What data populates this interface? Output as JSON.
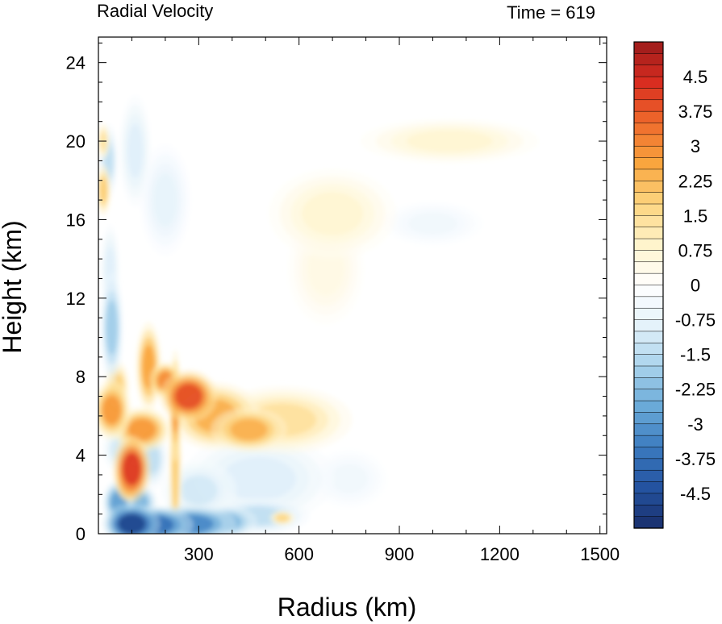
{
  "chart_data": {
    "type": "heatmap",
    "title": "Radial Velocity",
    "subtitle": "Time = 619",
    "xlabel": "Radius (km)",
    "ylabel": "Height (km)",
    "xlim": [
      0,
      1520
    ],
    "ylim": [
      0,
      25.3
    ],
    "x_ticks": [
      300,
      600,
      900,
      1200,
      1500
    ],
    "x_tick_labels": [
      "300",
      "600",
      "900",
      "1200",
      "1500"
    ],
    "y_ticks": [
      0,
      4,
      8,
      12,
      16,
      20,
      24
    ],
    "y_tick_labels": [
      "0",
      "4",
      "8",
      "12",
      "16",
      "20",
      "24"
    ],
    "grid": false,
    "colorbar": {
      "min": -5.25,
      "max": 5.25,
      "step": 0.25,
      "labels": [
        "4.5",
        "3.75",
        "3",
        "2.25",
        "1.5",
        "0.75",
        "0",
        "-0.75",
        "-1.5",
        "-2.25",
        "-3",
        "-3.75",
        "-4.5"
      ],
      "label_values": [
        4.5,
        3.75,
        3,
        2.25,
        1.5,
        0.75,
        0,
        -0.75,
        -1.5,
        -2.25,
        -3,
        -3.75,
        -4.5
      ],
      "palette": [
        "#1a2f6b",
        "#2453a0",
        "#3b7bc0",
        "#6aaad8",
        "#a9d3ec",
        "#e4f2fa",
        "#ffffff",
        "#fff4cc",
        "#fdd57f",
        "#f9a53e",
        "#ef6b2c",
        "#d92d20",
        "#9b1b1b"
      ]
    },
    "features": [
      {
        "r": 100,
        "z": 3.3,
        "dr": 30,
        "dz": 0.9,
        "v": 4.5
      },
      {
        "r": 90,
        "z": 2.6,
        "dr": 20,
        "dz": 0.5,
        "v": 3.5
      },
      {
        "r": 270,
        "z": 7.0,
        "dr": 45,
        "dz": 0.7,
        "v": 4.2
      },
      {
        "r": 200,
        "z": 7.8,
        "dr": 25,
        "dz": 0.5,
        "v": 3.2
      },
      {
        "r": 150,
        "z": 8.5,
        "dr": 20,
        "dz": 1.2,
        "v": 2.8
      },
      {
        "r": 350,
        "z": 6.0,
        "dr": 70,
        "dz": 0.9,
        "v": 2.6
      },
      {
        "r": 450,
        "z": 5.3,
        "dr": 60,
        "dz": 0.6,
        "v": 2.6
      },
      {
        "r": 550,
        "z": 5.8,
        "dr": 110,
        "dz": 0.9,
        "v": 1.5
      },
      {
        "r": 130,
        "z": 5.3,
        "dr": 45,
        "dz": 0.6,
        "v": 3.0
      },
      {
        "r": 40,
        "z": 6.3,
        "dr": 30,
        "dz": 0.8,
        "v": 3.0
      },
      {
        "r": 55,
        "z": 7.5,
        "dr": 20,
        "dz": 0.7,
        "v": 2.0
      },
      {
        "r": 230,
        "z": 3.5,
        "dr": 10,
        "dz": 2.5,
        "v": 2.0
      },
      {
        "r": 230,
        "z": 6.5,
        "dr": 10,
        "dz": 1.5,
        "v": 3.0
      },
      {
        "r": 100,
        "z": 0.5,
        "dr": 45,
        "dz": 0.55,
        "v": -5.0
      },
      {
        "r": 170,
        "z": 0.45,
        "dr": 60,
        "dz": 0.5,
        "v": -4.0
      },
      {
        "r": 280,
        "z": 0.5,
        "dr": 70,
        "dz": 0.5,
        "v": -3.5
      },
      {
        "r": 380,
        "z": 0.6,
        "dr": 50,
        "dz": 0.45,
        "v": -2.5
      },
      {
        "r": 60,
        "z": 1.6,
        "dr": 25,
        "dz": 0.6,
        "v": -3.0
      },
      {
        "r": 120,
        "z": 1.6,
        "dr": 30,
        "dz": 0.5,
        "v": -2.5
      },
      {
        "r": 480,
        "z": 0.9,
        "dr": 80,
        "dz": 0.5,
        "v": -1.5
      },
      {
        "r": 480,
        "z": 2.8,
        "dr": 120,
        "dz": 1.2,
        "v": -1.0
      },
      {
        "r": 300,
        "z": 2.2,
        "dr": 60,
        "dz": 0.8,
        "v": -1.2
      },
      {
        "r": 40,
        "z": 10.5,
        "dr": 18,
        "dz": 1.5,
        "v": -2.0
      },
      {
        "r": 35,
        "z": 13.5,
        "dr": 15,
        "dz": 1.2,
        "v": -1.0
      },
      {
        "r": 30,
        "z": 19.0,
        "dr": 15,
        "dz": 1.0,
        "v": -1.5
      },
      {
        "r": 110,
        "z": 19.5,
        "dr": 25,
        "dz": 1.5,
        "v": -1.0
      },
      {
        "r": 200,
        "z": 17.0,
        "dr": 40,
        "dz": 1.5,
        "v": -0.8
      },
      {
        "r": 15,
        "z": 17.5,
        "dr": 12,
        "dz": 0.7,
        "v": 2.0
      },
      {
        "r": 15,
        "z": 20.0,
        "dr": 10,
        "dz": 0.5,
        "v": 1.5
      },
      {
        "r": 700,
        "z": 16.3,
        "dr": 100,
        "dz": 1.2,
        "v": 0.8
      },
      {
        "r": 680,
        "z": 13.5,
        "dr": 60,
        "dz": 1.5,
        "v": 0.5
      },
      {
        "r": 1050,
        "z": 20.0,
        "dr": 140,
        "dz": 0.6,
        "v": 0.8
      },
      {
        "r": 1000,
        "z": 15.8,
        "dr": 80,
        "dz": 0.6,
        "v": -0.5
      },
      {
        "r": 750,
        "z": 2.8,
        "dr": 60,
        "dz": 0.8,
        "v": -0.5
      },
      {
        "r": 550,
        "z": 0.8,
        "dr": 20,
        "dz": 0.2,
        "v": 1.8
      },
      {
        "r": 230,
        "z": 1.2,
        "dr": 12,
        "dz": 1.0,
        "v": -1.5
      },
      {
        "r": 160,
        "z": 3.8,
        "dr": 25,
        "dz": 0.8,
        "v": -1.5
      },
      {
        "r": 60,
        "z": 4.3,
        "dr": 25,
        "dz": 0.6,
        "v": -1.2
      }
    ]
  }
}
